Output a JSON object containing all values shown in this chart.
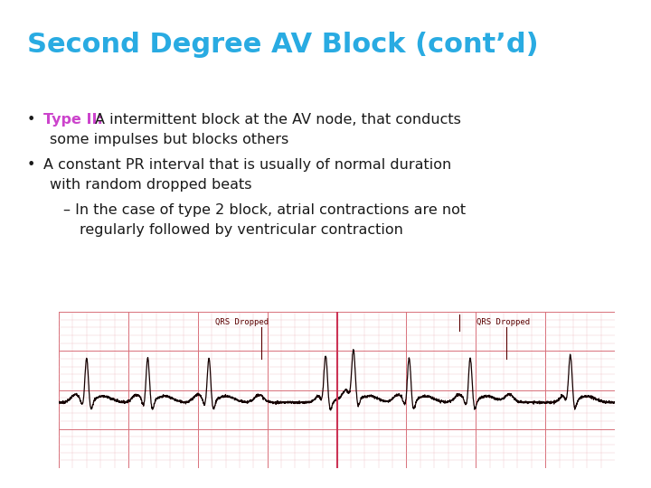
{
  "title": "Second Degree AV Block (cont’d)",
  "title_color": "#29ABE2",
  "title_fontsize": 22,
  "background_color": "#FFFFFF",
  "bullet1_label": "Type II:",
  "bullet1_label_color": "#CC44CC",
  "bullet1_rest": " A intermittent block at the AV node, that conducts",
  "bullet1_wrap": "some impulses but blocks others",
  "bullet2_line1": "A constant PR interval that is usually of normal duration",
  "bullet2_line2": "with random dropped beats",
  "sub_line1": "– In the case of type 2 block, atrial contractions are not",
  "sub_line2": "regularly followed by ventricular contraction",
  "text_color": "#1a1a1a",
  "text_fontsize": 11.5,
  "bullet_color": "#1a1a1a",
  "ecg_bg_color": "#f7c8cc",
  "ecg_grid_major_color": "#d8707a",
  "ecg_grid_minor_color": "#ebb8bc",
  "ecg_line_color": "#150000",
  "label_color": "#5a0000",
  "label1": "QRS Dropped",
  "label2": "QRS Dropped",
  "divider_color": "#cc3355"
}
